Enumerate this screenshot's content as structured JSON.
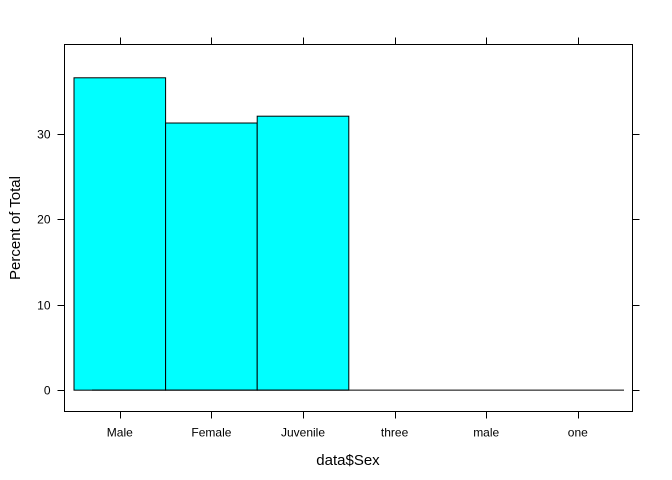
{
  "chart_data": {
    "type": "bar",
    "style": "lattice-histogram",
    "categories": [
      "Male",
      "Female",
      "Juvenile",
      "three",
      "male",
      "one"
    ],
    "values": [
      36.6,
      31.3,
      32.1,
      0,
      0,
      0
    ],
    "title": "",
    "xlabel": "data$Sex",
    "ylabel": "Percent of Total",
    "ylim": [
      -2.5,
      40.5
    ],
    "yticks": [
      0,
      10,
      20,
      30
    ],
    "grid": false,
    "legend": "none",
    "bar_fill": "#00ffff",
    "bar_stroke": "#000000"
  }
}
